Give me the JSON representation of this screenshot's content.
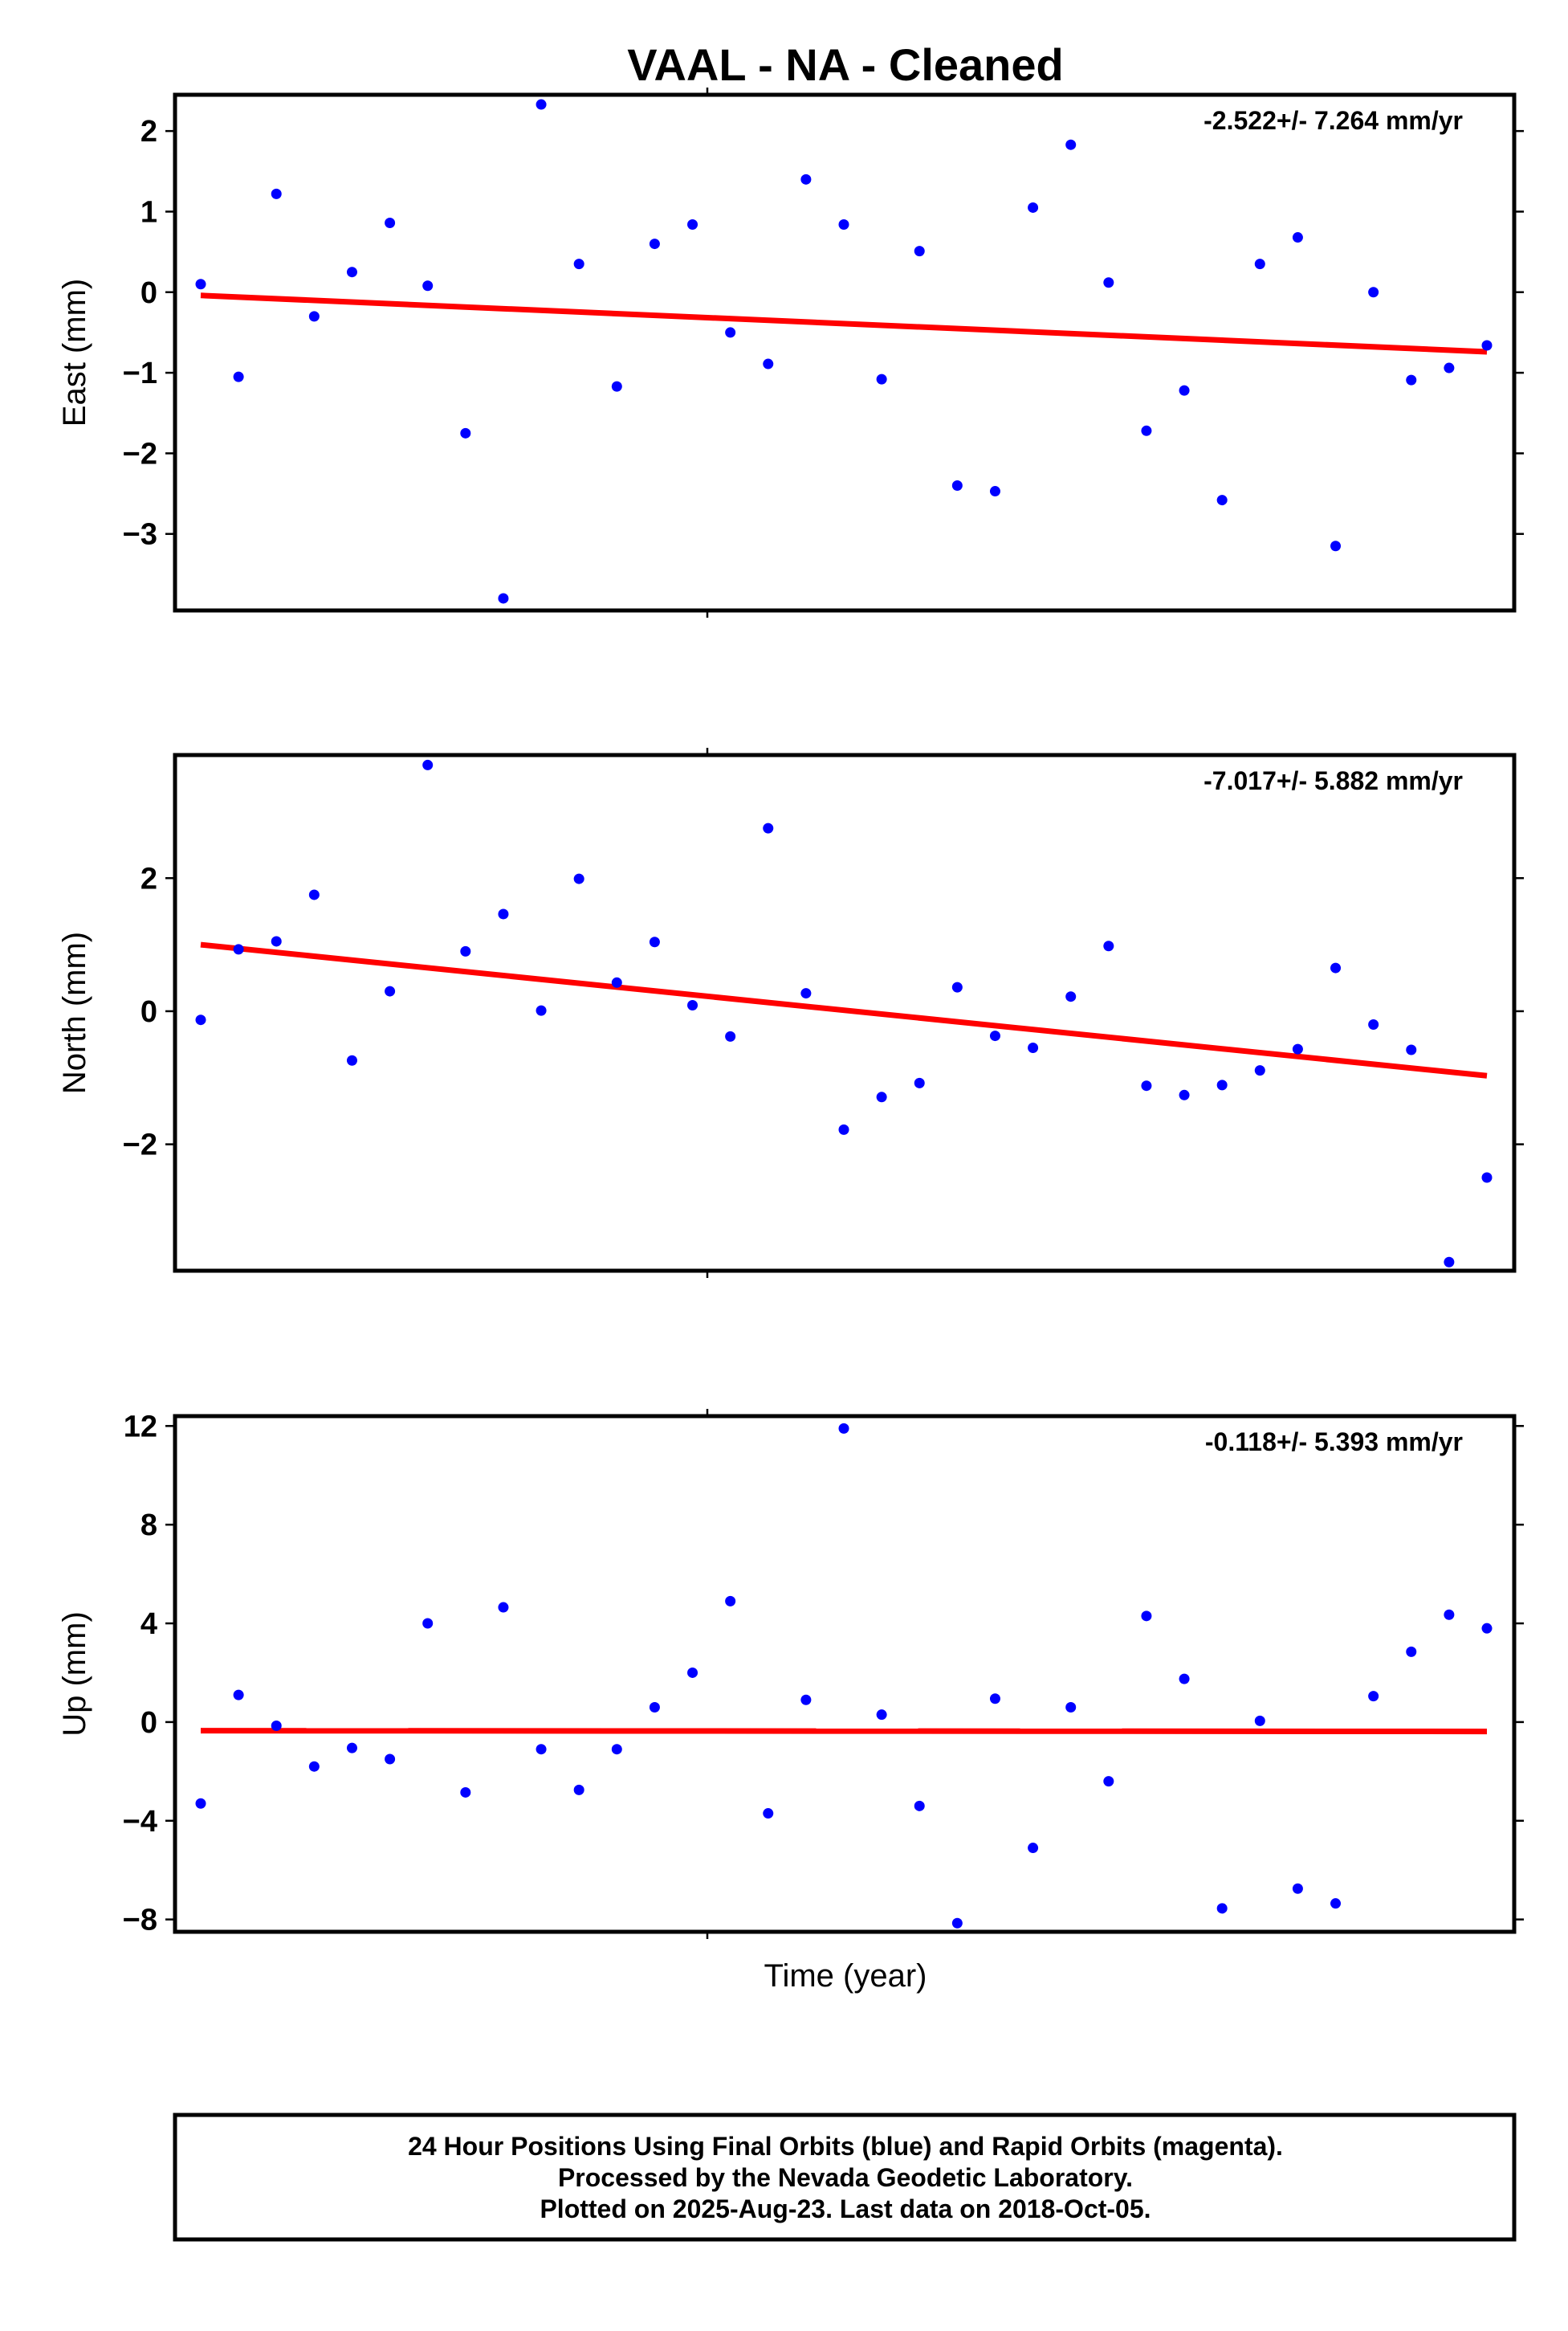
{
  "title": "VAAL  - NA - Cleaned",
  "xlabel": "Time (year)",
  "footer_lines": [
    "24 Hour Positions Using Final Orbits (blue) and Rapid Orbits (magenta).",
    "Processed by the Nevada Geodetic Laboratory.",
    "Plotted on 2025-Aug-23. Last data on 2018-Oct-05."
  ],
  "colors": {
    "points": "#0000ff",
    "trend": "#ff0000",
    "frame": "#000000"
  },
  "chart_data": [
    {
      "type": "scatter",
      "ylabel": "East (mm)",
      "rate_label": "-2.522+/- 7.264 mm/yr",
      "ylim": [
        -3.95,
        2.45
      ],
      "yticks": [
        -3,
        -2,
        -1,
        0,
        1,
        2
      ],
      "ytick_labels": [
        "−3",
        "−2",
        "−1",
        "0",
        "1",
        "2"
      ],
      "points": [
        0.1,
        -1.05,
        1.22,
        -0.3,
        0.25,
        0.86,
        0.08,
        -1.75,
        -3.8,
        2.33,
        0.35,
        -1.17,
        0.6,
        0.84,
        -0.5,
        -0.89,
        1.4,
        0.84,
        -1.08,
        0.51,
        -2.4,
        -2.47,
        1.05,
        1.83,
        0.12,
        -1.72,
        -1.22,
        -2.58,
        0.35,
        0.68,
        -3.15,
        0.0,
        -1.09,
        -0.94,
        -0.66
      ],
      "trend": [
        -0.04,
        -0.74
      ]
    },
    {
      "type": "scatter",
      "ylabel": "North (mm)",
      "rate_label": "-7.017+/- 5.882 mm/yr",
      "ylim": [
        -3.9,
        3.85
      ],
      "yticks": [
        -2,
        0,
        2
      ],
      "ytick_labels": [
        "−2",
        "0",
        "2"
      ],
      "points": [
        -0.13,
        0.93,
        1.05,
        1.75,
        -0.74,
        0.3,
        3.7,
        0.9,
        1.46,
        0.01,
        1.99,
        0.43,
        1.04,
        0.09,
        -0.38,
        2.75,
        0.27,
        -1.78,
        -1.29,
        -1.08,
        0.36,
        -0.37,
        -0.55,
        0.22,
        0.98,
        -1.12,
        -1.26,
        -1.11,
        -0.89,
        -0.57,
        0.65,
        -0.2,
        -0.58,
        -3.77,
        -2.5
      ],
      "trend": [
        1.0,
        -0.97
      ]
    },
    {
      "type": "scatter",
      "ylabel": "Up (mm)",
      "rate_label": "-0.118+/- 5.393 mm/yr",
      "ylim": [
        -8.5,
        12.4
      ],
      "yticks": [
        -8,
        -4,
        0,
        4,
        8,
        12
      ],
      "ytick_labels": [
        "−8",
        "−4",
        "0",
        "4",
        "8",
        "12"
      ],
      "points": [
        -3.3,
        1.1,
        -0.15,
        -1.8,
        -1.05,
        -1.5,
        4.0,
        -2.85,
        4.65,
        -1.1,
        -2.75,
        -1.1,
        0.6,
        2.0,
        4.9,
        -3.7,
        0.9,
        11.9,
        0.3,
        -3.4,
        -8.15,
        0.95,
        -5.1,
        0.6,
        -2.4,
        4.3,
        1.75,
        -7.55,
        0.05,
        -6.75,
        -7.35,
        1.05,
        2.85,
        4.35,
        3.8
      ],
      "trend": [
        -0.35,
        -0.38
      ]
    }
  ]
}
